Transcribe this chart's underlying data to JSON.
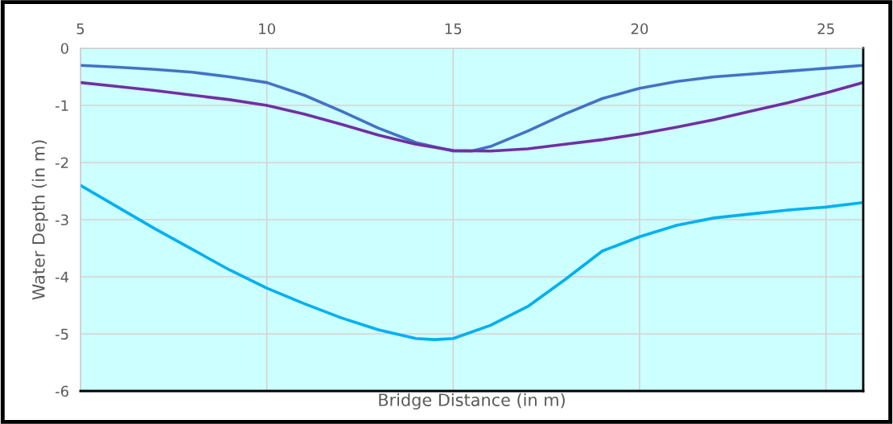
{
  "chart_data": {
    "type": "line",
    "xlabel": "Bridge Distance (in m)",
    "ylabel": "Water Depth (in m)",
    "series": [
      {
        "color": "#4472c4",
        "x": [
          5,
          6,
          7,
          8,
          9,
          10,
          11,
          12,
          13,
          14,
          15,
          15.5,
          16,
          17,
          18,
          19,
          20,
          21,
          22,
          23,
          24,
          25,
          26
        ],
        "values": [
          -0.3,
          -0.33,
          -0.37,
          -0.42,
          -0.5,
          -0.6,
          -0.82,
          -1.1,
          -1.4,
          -1.65,
          -1.8,
          -1.8,
          -1.72,
          -1.45,
          -1.15,
          -0.88,
          -0.7,
          -0.58,
          -0.5,
          -0.45,
          -0.4,
          -0.35,
          -0.3
        ]
      },
      {
        "color": "#7030a0",
        "x": [
          5,
          6,
          7,
          8,
          9,
          10,
          11,
          12,
          13,
          14,
          15,
          16,
          17,
          18,
          19,
          20,
          21,
          22,
          23,
          24,
          25,
          26
        ],
        "values": [
          -0.6,
          -0.67,
          -0.74,
          -0.82,
          -0.9,
          -1.0,
          -1.15,
          -1.33,
          -1.52,
          -1.68,
          -1.79,
          -1.8,
          -1.76,
          -1.68,
          -1.6,
          -1.5,
          -1.38,
          -1.25,
          -1.1,
          -0.95,
          -0.78,
          -0.6
        ]
      },
      {
        "color": "#00b0f0",
        "x": [
          5,
          6,
          7,
          8,
          9,
          10,
          11,
          12,
          13,
          14,
          14.5,
          15,
          16,
          17,
          18,
          19,
          20,
          21,
          22,
          23,
          24,
          25,
          26
        ],
        "values": [
          -2.4,
          -2.78,
          -3.16,
          -3.52,
          -3.88,
          -4.2,
          -4.47,
          -4.72,
          -4.93,
          -5.08,
          -5.1,
          -5.08,
          -4.85,
          -4.52,
          -4.05,
          -3.55,
          -3.3,
          -3.1,
          -2.97,
          -2.9,
          -2.83,
          -2.78,
          -2.7
        ]
      }
    ],
    "xlim": [
      5,
      26
    ],
    "xticks": [
      5,
      10,
      15,
      20,
      25
    ],
    "ylim": [
      -6,
      0
    ],
    "yticks": [
      0,
      -1,
      -2,
      -3,
      -4,
      -5,
      -6
    ],
    "grid": true,
    "marker": "none",
    "line_style": "solid"
  }
}
